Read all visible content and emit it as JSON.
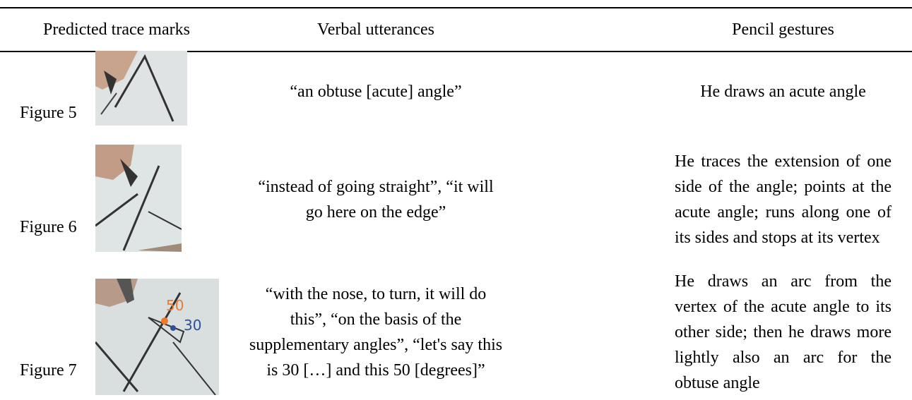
{
  "header": {
    "columns": [
      "Predicted trace marks",
      "Verbal utterances",
      "Pencil gestures"
    ]
  },
  "rows": [
    {
      "figure": "Figure 5",
      "utterance": "“an obtuse [acute] angle”",
      "gesture": "He draws an acute angle"
    },
    {
      "figure": "Figure 6",
      "utterance": "“instead of going straight”, “it will go here on the edge”",
      "gesture": "He traces the extension of one side of the angle; points at the acute angle; runs along one of its sides and stops at its vertex"
    },
    {
      "figure": "Figure 7",
      "utterance": "“with the nose, to turn, it will do this”, “on the basis of the supplementary angles”, “let's say this is 30 […] and this 50 [degrees]”",
      "gesture": "He draws an arc from the vertex of the acute angle to its other side; then he draws more lightly also an arc for the obtuse angle",
      "image_labels": [
        "50",
        "30"
      ]
    }
  ]
}
